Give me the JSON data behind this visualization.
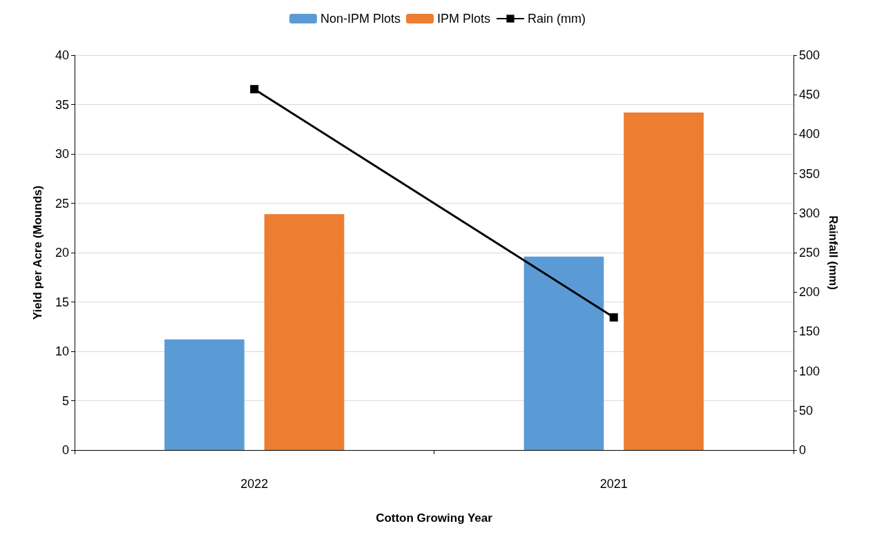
{
  "chart_data": {
    "type": "bar",
    "xlabel": "Cotton Growing Year",
    "ylabel": "Yield per Acre (Mounds)",
    "y2label": "Rainfall (mm)",
    "categories": [
      "2022",
      "2021"
    ],
    "series": [
      {
        "name": "Non-IPM Plots",
        "color": "#5b9bd5",
        "values": [
          11.2,
          19.6
        ]
      },
      {
        "name": "IPM Plots",
        "color": "#ed7d31",
        "values": [
          23.9,
          34.2
        ]
      },
      {
        "name": "Rain (mm)",
        "type": "line",
        "axis": "y2",
        "color": "#000000",
        "values": [
          457,
          168
        ],
        "marker": "square"
      }
    ],
    "ylim": [
      0,
      40
    ],
    "yticks": [
      0,
      5,
      10,
      15,
      20,
      25,
      30,
      35,
      40
    ],
    "y2lim": [
      0,
      500
    ],
    "y2ticks": [
      0,
      50,
      100,
      150,
      200,
      250,
      300,
      350,
      400,
      450,
      500
    ],
    "grid": "y",
    "legend": "top"
  }
}
